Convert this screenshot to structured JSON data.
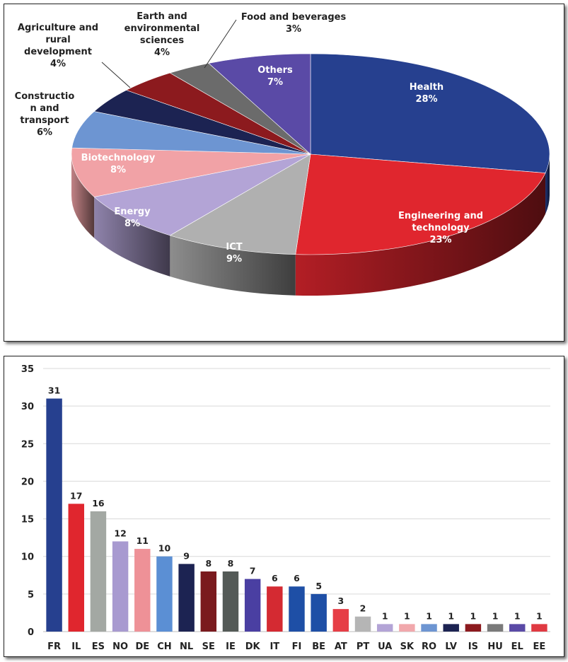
{
  "chart_data": [
    {
      "type": "pie",
      "title": "",
      "slices": [
        {
          "label": "Health",
          "percent": "28%",
          "value": 28,
          "color": "#26408f"
        },
        {
          "label": "Engineering and technology",
          "percent": "23%",
          "value": 23,
          "color": "#e0262e"
        },
        {
          "label": "ICT",
          "percent": "9%",
          "value": 9,
          "color": "#b0b0b0"
        },
        {
          "label": "Energy",
          "percent": "8%",
          "value": 8,
          "color": "#b3a4d6"
        },
        {
          "label": "Biotechnology",
          "percent": "8%",
          "value": 8,
          "color": "#f1a2a6"
        },
        {
          "label": "Constructio n and transport",
          "percent": "6%",
          "value": 6,
          "color": "#6d95d2"
        },
        {
          "label": "Agriculture and rural development",
          "percent": "4%",
          "value": 4,
          "color": "#1c2352"
        },
        {
          "label": "Earth and environmental sciences",
          "percent": "4%",
          "value": 4,
          "color": "#8c1a1e"
        },
        {
          "label": "Food and beverages",
          "percent": "3%",
          "value": 3,
          "color": "#6b6b6b"
        },
        {
          "label": "Others",
          "percent": "7%",
          "value": 7,
          "color": "#5a4aa6"
        }
      ]
    },
    {
      "type": "bar",
      "title": "",
      "xlabel": "",
      "ylabel": "",
      "ylim": [
        0,
        35
      ],
      "yticks": [
        "0",
        "5",
        "10",
        "15",
        "20",
        "25",
        "30",
        "35"
      ],
      "grid": true,
      "categories": [
        "FR",
        "IL",
        "ES",
        "NO",
        "DE",
        "CH",
        "NL",
        "SE",
        "IE",
        "DK",
        "IT",
        "FI",
        "BE",
        "AT",
        "PT",
        "UA",
        "SK",
        "RO",
        "LV",
        "IS",
        "HU",
        "EL",
        "EE"
      ],
      "values": [
        31,
        17,
        16,
        12,
        11,
        10,
        9,
        8,
        8,
        7,
        6,
        6,
        5,
        3,
        2,
        1,
        1,
        1,
        1,
        1,
        1,
        1,
        1
      ],
      "value_labels": [
        "31",
        "17",
        "16",
        "12",
        "11",
        "10",
        "9",
        "8",
        "8",
        "7",
        "6",
        "6",
        "5",
        "3",
        "2",
        "1",
        "1",
        "1",
        "1",
        "1",
        "1",
        "1",
        "1"
      ],
      "colors": [
        "#26408f",
        "#e0262e",
        "#a3a8a3",
        "#a89ad0",
        "#ee9197",
        "#5b8fd4",
        "#1c2352",
        "#7a1a1e",
        "#545a57",
        "#4a3fa2",
        "#d42a32",
        "#1e4fa6",
        "#1e4fa6",
        "#e63e46",
        "#b5b5b5",
        "#b3a4d6",
        "#f1a8ac",
        "#6d95d2",
        "#1c2352",
        "#8c1a1e",
        "#7a7a7a",
        "#5a4aa6",
        "#e03a42"
      ]
    }
  ]
}
